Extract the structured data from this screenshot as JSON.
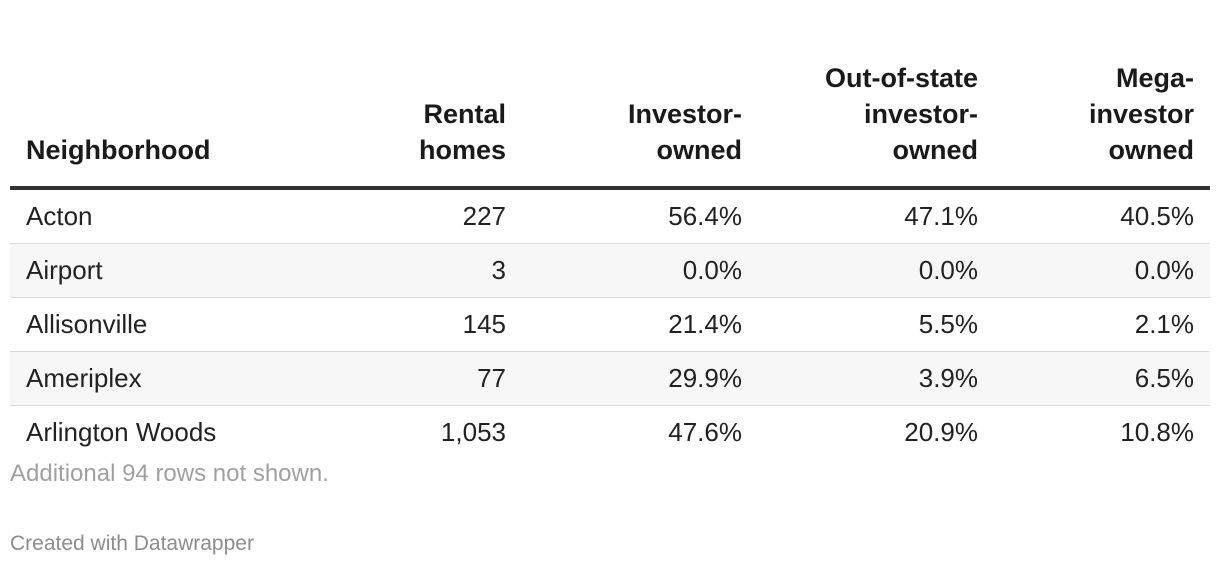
{
  "chart_data": {
    "type": "table",
    "columns": [
      {
        "key": "neighborhood",
        "label_lines": [
          "Neighborhood"
        ]
      },
      {
        "key": "rental_homes",
        "label_lines": [
          "Rental",
          "homes"
        ]
      },
      {
        "key": "investor_owned",
        "label_lines": [
          "Investor-",
          "owned"
        ]
      },
      {
        "key": "out_of_state_investor_owned",
        "label_lines": [
          "Out-of-state",
          "investor-",
          "owned"
        ]
      },
      {
        "key": "mega_investor_owned",
        "label_lines": [
          "Mega-",
          "investor",
          "owned"
        ]
      }
    ],
    "rows": [
      [
        "Acton",
        "227",
        "56.4%",
        "47.1%",
        "40.5%"
      ],
      [
        "Airport",
        "3",
        "0.0%",
        "0.0%",
        "0.0%"
      ],
      [
        "Allisonville",
        "145",
        "21.4%",
        "5.5%",
        "2.1%"
      ],
      [
        "Ameriplex",
        "77",
        "29.9%",
        "3.9%",
        "6.5%"
      ],
      [
        "Arlington Woods",
        "1,053",
        "47.6%",
        "20.9%",
        "10.8%"
      ]
    ]
  },
  "footer": {
    "note": "Additional 94 rows not shown.",
    "credit": "Created with Datawrapper"
  },
  "colors": {
    "header_rule": "#333333",
    "row_divider": "#d9d9d9",
    "alt_row_background": "#f7f7f7",
    "note_text": "#a0a0a0"
  }
}
